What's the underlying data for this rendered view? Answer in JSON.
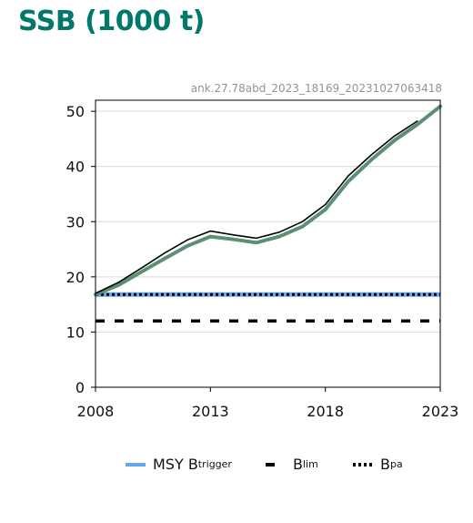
{
  "title": "SSB (1000 t)",
  "stamp": "ank.27.78abd_2023_18169_20231027063418",
  "legend": {
    "msy_main": "MSY B",
    "msy_sub": "trigger",
    "blim_main": "B",
    "blim_sub": "lim",
    "bpa_main": "B",
    "bpa_sub": "pa"
  },
  "chart_data": {
    "type": "line",
    "title": "SSB (1000 t)",
    "xlim": [
      2008,
      2023
    ],
    "ylim": [
      0,
      52
    ],
    "xticks": [
      2008,
      2013,
      2018,
      2023
    ],
    "yticks": [
      0,
      10,
      20,
      30,
      40,
      50
    ],
    "grid": "horizontal",
    "legend_position": "bottom",
    "series": [
      {
        "name": "",
        "color": "#000000",
        "x": [
          2008,
          2009,
          2010,
          2011,
          2012,
          2013,
          2014,
          2015,
          2016,
          2017,
          2018,
          2019,
          2020,
          2021,
          2022
        ],
        "values": [
          17.0,
          19.0,
          21.6,
          24.3,
          26.7,
          28.3,
          27.6,
          27.0,
          28.1,
          30.0,
          33.1,
          38.3,
          42.1,
          45.5,
          48.2
        ]
      },
      {
        "name": "",
        "color": "#5a9173",
        "x": [
          2008,
          2009,
          2010,
          2011,
          2012,
          2013,
          2014,
          2015,
          2016,
          2017,
          2018,
          2019,
          2020,
          2021,
          2022,
          2023
        ],
        "values": [
          16.8,
          18.5,
          20.9,
          23.3,
          25.6,
          27.3,
          26.8,
          26.2,
          27.3,
          29.1,
          32.2,
          37.3,
          41.2,
          44.7,
          47.6,
          50.9
        ]
      }
    ],
    "reference_lines": [
      {
        "name": "MSY Btrigger",
        "value": 16.8,
        "style": "solid",
        "color": "#6aa3f0"
      },
      {
        "name": "Bpa",
        "value": 16.8,
        "style": "dotted",
        "color": "#000000"
      },
      {
        "name": "Blim",
        "value": 12.0,
        "style": "dashed",
        "color": "#000000"
      }
    ]
  }
}
